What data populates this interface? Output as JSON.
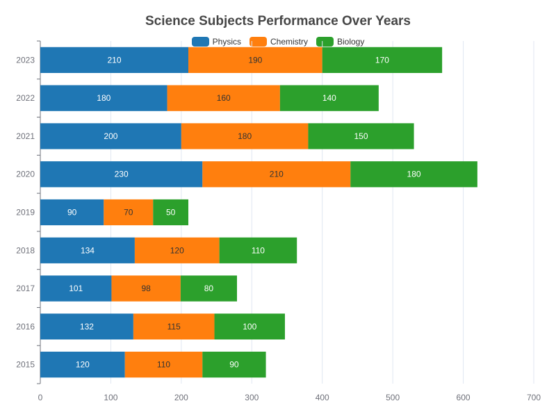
{
  "chart_data": {
    "type": "bar",
    "orientation": "horizontal",
    "stacked": true,
    "title": "Science Subjects Performance Over Years",
    "categories": [
      "2015",
      "2016",
      "2017",
      "2018",
      "2019",
      "2020",
      "2021",
      "2022",
      "2023"
    ],
    "series": [
      {
        "name": "Physics",
        "color": "#1f77b4",
        "values": [
          120,
          132,
          101,
          134,
          90,
          230,
          200,
          180,
          210
        ]
      },
      {
        "name": "Chemistry",
        "color": "#ff7f0e",
        "values": [
          110,
          115,
          98,
          120,
          70,
          210,
          180,
          160,
          190
        ]
      },
      {
        "name": "Biology",
        "color": "#2ca02c",
        "values": [
          90,
          100,
          80,
          110,
          50,
          180,
          150,
          140,
          170
        ]
      }
    ],
    "x_ticks": [
      0,
      100,
      200,
      300,
      400,
      500,
      600,
      700
    ],
    "xlim": [
      0,
      700
    ],
    "xlabel": "",
    "ylabel": "",
    "grid": "vertical",
    "legend_position": "top-center",
    "data_labels": true
  }
}
